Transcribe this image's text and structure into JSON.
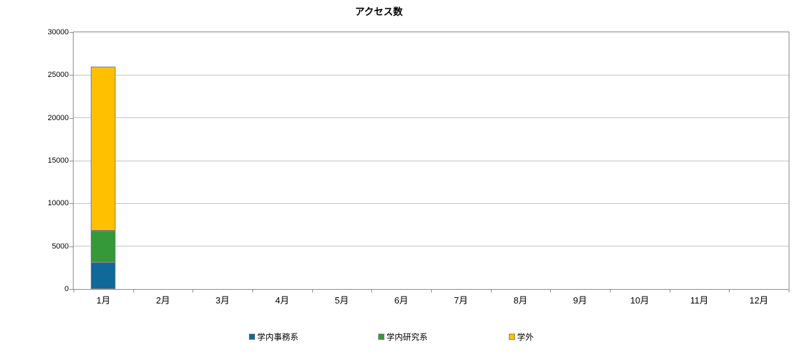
{
  "chart_data": {
    "type": "bar",
    "stacked": true,
    "title": "アクセス数",
    "categories": [
      "1月",
      "2月",
      "3月",
      "4月",
      "5月",
      "6月",
      "7月",
      "8月",
      "9月",
      "10月",
      "11月",
      "12月"
    ],
    "series": [
      {
        "name": "学内事務系",
        "color": "#10689B",
        "values": [
          3100,
          0,
          0,
          0,
          0,
          0,
          0,
          0,
          0,
          0,
          0,
          0
        ]
      },
      {
        "name": "学内研究系",
        "color": "#359839",
        "values": [
          3700,
          0,
          0,
          0,
          0,
          0,
          0,
          0,
          0,
          0,
          0,
          0
        ]
      },
      {
        "name": "学外",
        "color": "#FFC000",
        "values": [
          19200,
          0,
          0,
          0,
          0,
          0,
          0,
          0,
          0,
          0,
          0,
          0
        ]
      }
    ],
    "ylim": [
      0,
      30000
    ],
    "ytick_interval": 5000,
    "ytick_labels": [
      "0",
      "5000",
      "10000",
      "15000",
      "20000",
      "25000",
      "30000"
    ],
    "xlabel": "",
    "ylabel": "",
    "grid": true,
    "legend_position": "bottom"
  },
  "colors": {
    "background": "#FFFFFF",
    "gridline": "#C3C3C3",
    "plot_border": "#898989",
    "bar_border": "#808080",
    "text": "#000000"
  }
}
